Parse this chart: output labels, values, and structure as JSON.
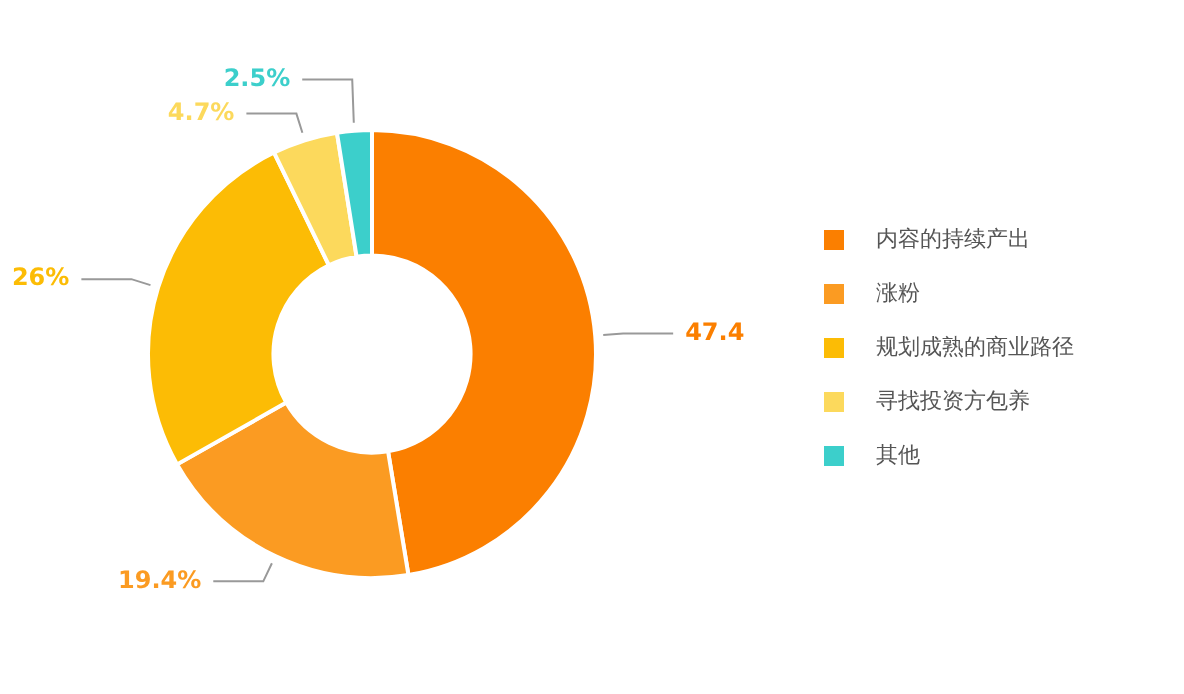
{
  "chart_data": {
    "type": "donut",
    "categories": [
      "内容的持续产出",
      "涨粉",
      "规划成熟的商业路径",
      "寻找投资方包养",
      "其他"
    ],
    "values": [
      47.4,
      19.4,
      26,
      4.7,
      2.5
    ],
    "colors": [
      "#fb7f00",
      "#fb9b22",
      "#fcbc05",
      "#fcd95c",
      "#3ccfcb"
    ],
    "value_labels": [
      "47.4",
      "19.4%",
      "26%",
      "4.7%",
      "2.5%"
    ],
    "legend": "right"
  }
}
